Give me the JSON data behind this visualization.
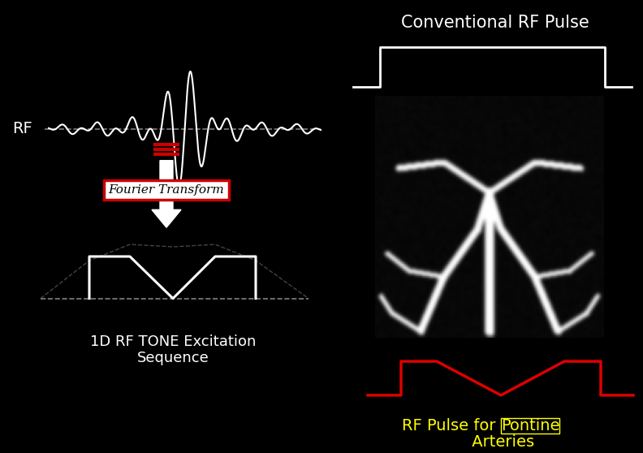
{
  "bg_color": "#000000",
  "white": "#ffffff",
  "red": "#cc0000",
  "yellow": "#ffff00",
  "gray": "#808080",
  "title_conv": "Conventional RF Pulse",
  "title_tone_line1": "1D RF TONE Excitation",
  "title_tone_line2": "Sequence",
  "title_pontine_prefix": "RF Pulse for ",
  "title_pontine_mid": "Pontine",
  "title_pontine_suffix": " Arteries",
  "label_rf": "RF",
  "label_ft": "Fourier Transform",
  "fig_width": 7.92,
  "fig_height": 5.58
}
